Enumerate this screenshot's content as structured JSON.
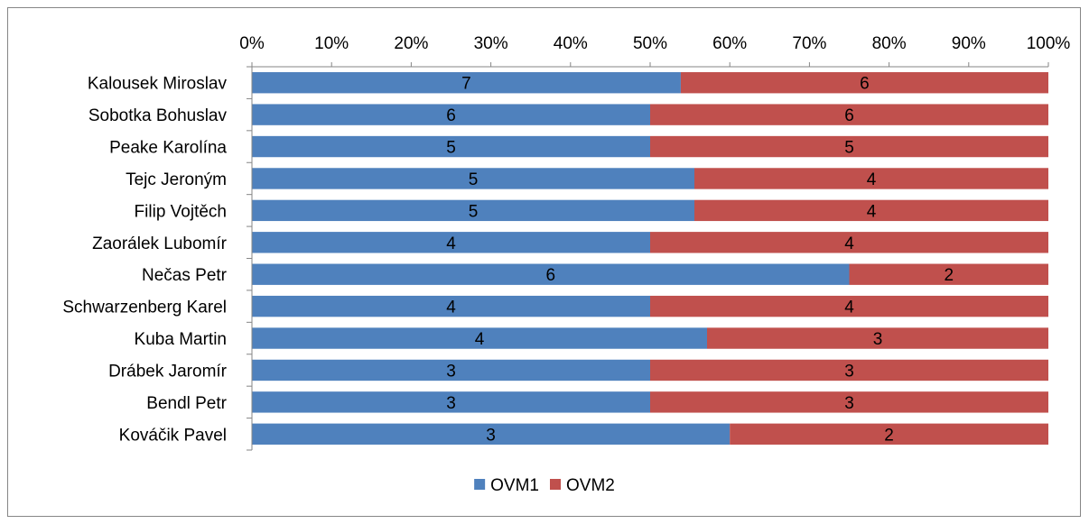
{
  "chart_data": {
    "type": "bar",
    "orientation": "horizontal",
    "stacking": "percent",
    "categories": [
      "Kalousek Miroslav",
      "Sobotka Bohuslav",
      "Peake Karolína",
      "Tejc Jeroným",
      "Filip Vojtěch",
      "Zaorálek Lubomír",
      "Nečas Petr",
      "Schwarzenberg Karel",
      "Kuba Martin",
      "Drábek Jaromír",
      "Bendl Petr",
      "Kováčik Pavel"
    ],
    "series": [
      {
        "name": "OVM1",
        "color": "#4f81bd",
        "values": [
          7,
          6,
          5,
          5,
          5,
          4,
          6,
          4,
          4,
          3,
          3,
          3
        ]
      },
      {
        "name": "OVM2",
        "color": "#c0504d",
        "values": [
          6,
          6,
          5,
          4,
          4,
          4,
          2,
          4,
          3,
          3,
          3,
          2
        ]
      }
    ],
    "x_ticks": [
      "0%",
      "10%",
      "20%",
      "30%",
      "40%",
      "50%",
      "60%",
      "70%",
      "80%",
      "90%",
      "100%"
    ],
    "xlim": [
      0,
      100
    ],
    "x_axis_position": "top",
    "grid": false,
    "data_labels": true,
    "legend_position": "bottom"
  }
}
